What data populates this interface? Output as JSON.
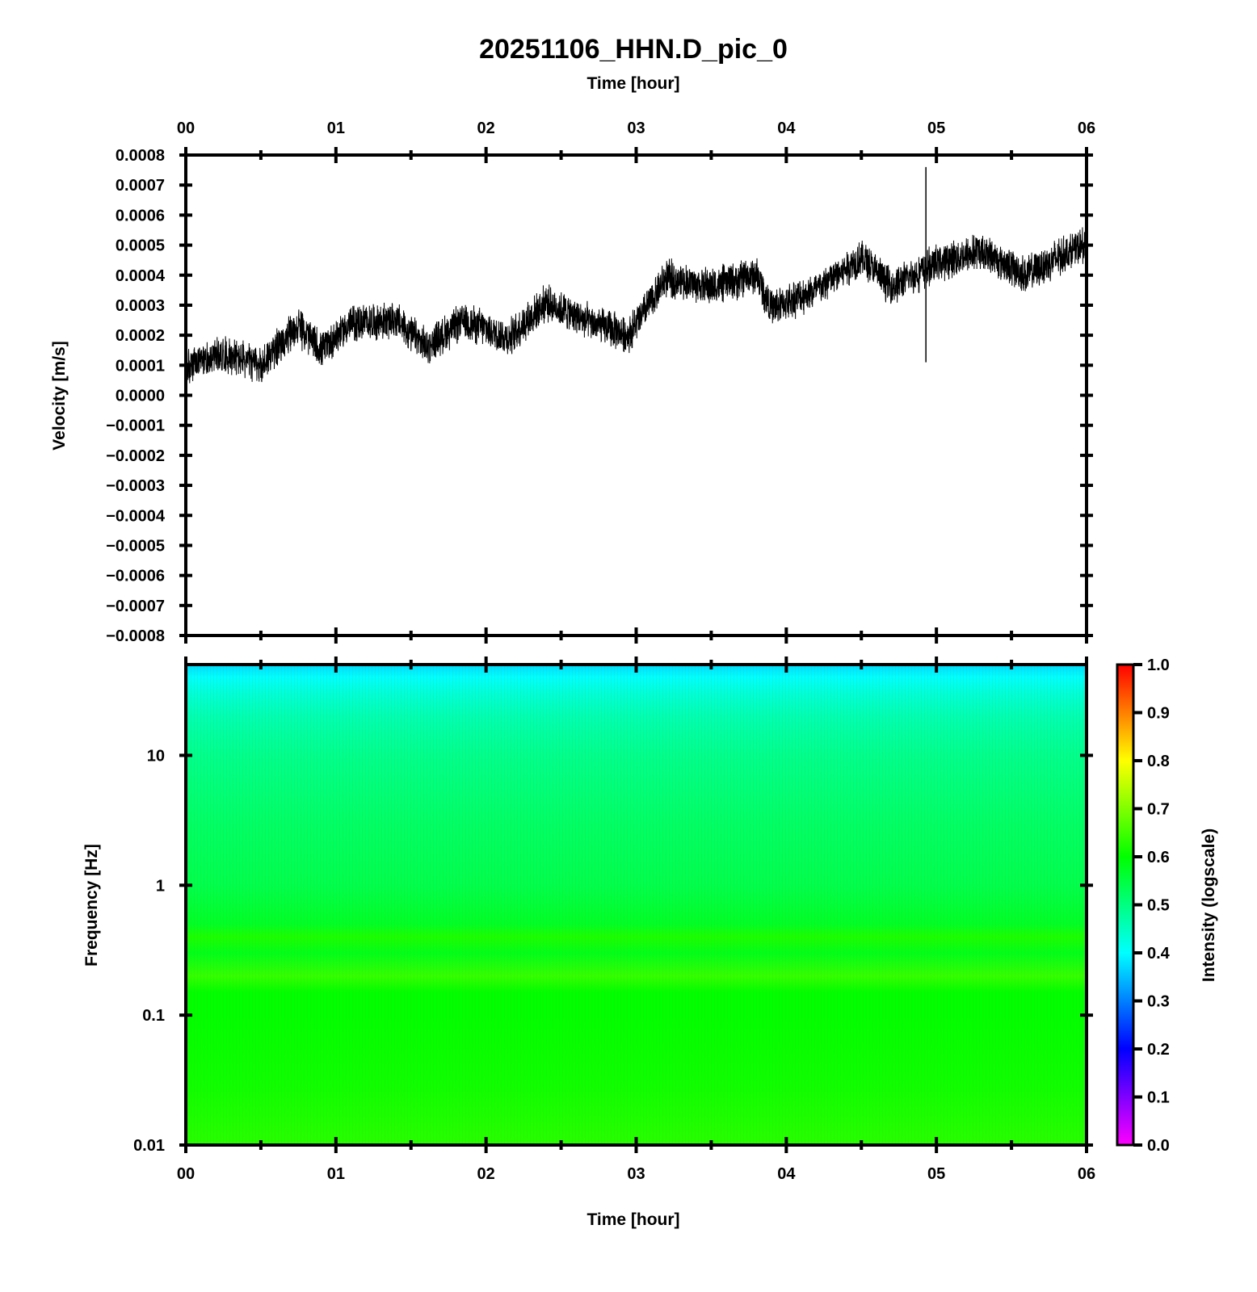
{
  "title": "20251106_HHN.D_pic_0",
  "chart_data": [
    {
      "type": "line",
      "name": "waveform",
      "title": "20251106_HHN.D_pic_0",
      "xlabel": "Time [hour]",
      "ylabel": "Velocity [m/s]",
      "xlim": [
        0,
        6
      ],
      "ylim": [
        -0.0008,
        0.0008
      ],
      "x_ticks": [
        "00",
        "01",
        "02",
        "03",
        "04",
        "05",
        "06"
      ],
      "y_ticks": [
        "0.0008",
        "0.0007",
        "0.0006",
        "0.0005",
        "0.0004",
        "0.0003",
        "0.0002",
        "0.0001",
        "0.0000",
        "−0.0001",
        "−0.0002",
        "−0.0003",
        "−0.0004",
        "−0.0005",
        "−0.0006",
        "−0.0007",
        "−0.0008"
      ],
      "trend": {
        "x": [
          0.0,
          0.25,
          0.5,
          0.75,
          0.9,
          1.1,
          1.4,
          1.6,
          1.85,
          2.15,
          2.4,
          2.7,
          2.95,
          3.2,
          3.5,
          3.8,
          3.9,
          4.2,
          4.5,
          4.7,
          5.0,
          5.3,
          5.6,
          5.85,
          6.0
        ],
        "y": [
          9e-05,
          0.00014,
          0.0001,
          0.00023,
          0.00015,
          0.00024,
          0.00025,
          0.00016,
          0.00025,
          0.00019,
          0.00031,
          0.00024,
          0.0002,
          0.00039,
          0.00036,
          0.0004,
          0.00029,
          0.00035,
          0.00046,
          0.00036,
          0.00044,
          0.00048,
          0.0004,
          0.00047,
          0.0005
        ]
      },
      "spike": {
        "x": 4.93,
        "ymin": 0.00011,
        "ymax": 0.00076
      },
      "noise_amplitude": 7e-05,
      "color": "#000000"
    },
    {
      "type": "heatmap",
      "name": "spectrogram",
      "xlabel": "Time [hour]",
      "ylabel": "Frequency [Hz]",
      "xlim": [
        0,
        6
      ],
      "ylim": [
        0.01,
        50
      ],
      "yscale": "log",
      "x_ticks": [
        "00",
        "01",
        "02",
        "03",
        "04",
        "05",
        "06"
      ],
      "y_ticks": [
        {
          "value": 10,
          "label": "10"
        },
        {
          "value": 1,
          "label": "1"
        },
        {
          "value": 0.1,
          "label": "0.1"
        },
        {
          "value": 0.01,
          "label": "0.01"
        }
      ],
      "intensity_profile": {
        "freq": [
          50,
          40,
          30,
          20,
          10,
          3,
          1,
          0.5,
          0.4,
          0.3,
          0.2,
          0.15,
          0.1,
          0.03,
          0.01
        ],
        "intensity": [
          0.37,
          0.4,
          0.43,
          0.46,
          0.49,
          0.52,
          0.54,
          0.57,
          0.62,
          0.58,
          0.64,
          0.6,
          0.6,
          0.61,
          0.63
        ]
      },
      "colorbar": {
        "label": "Intensity (logscale)",
        "range": [
          0.0,
          1.0
        ],
        "ticks": [
          "1.0",
          "0.9",
          "0.8",
          "0.7",
          "0.6",
          "0.5",
          "0.4",
          "0.3",
          "0.2",
          "0.1",
          "0.0"
        ],
        "colors": [
          "#ff00ff",
          "#7f00ff",
          "#0000ff",
          "#0080ff",
          "#00ffff",
          "#00ff80",
          "#00ff00",
          "#80ff00",
          "#ffff00",
          "#ff8000",
          "#ff0000"
        ]
      }
    }
  ]
}
